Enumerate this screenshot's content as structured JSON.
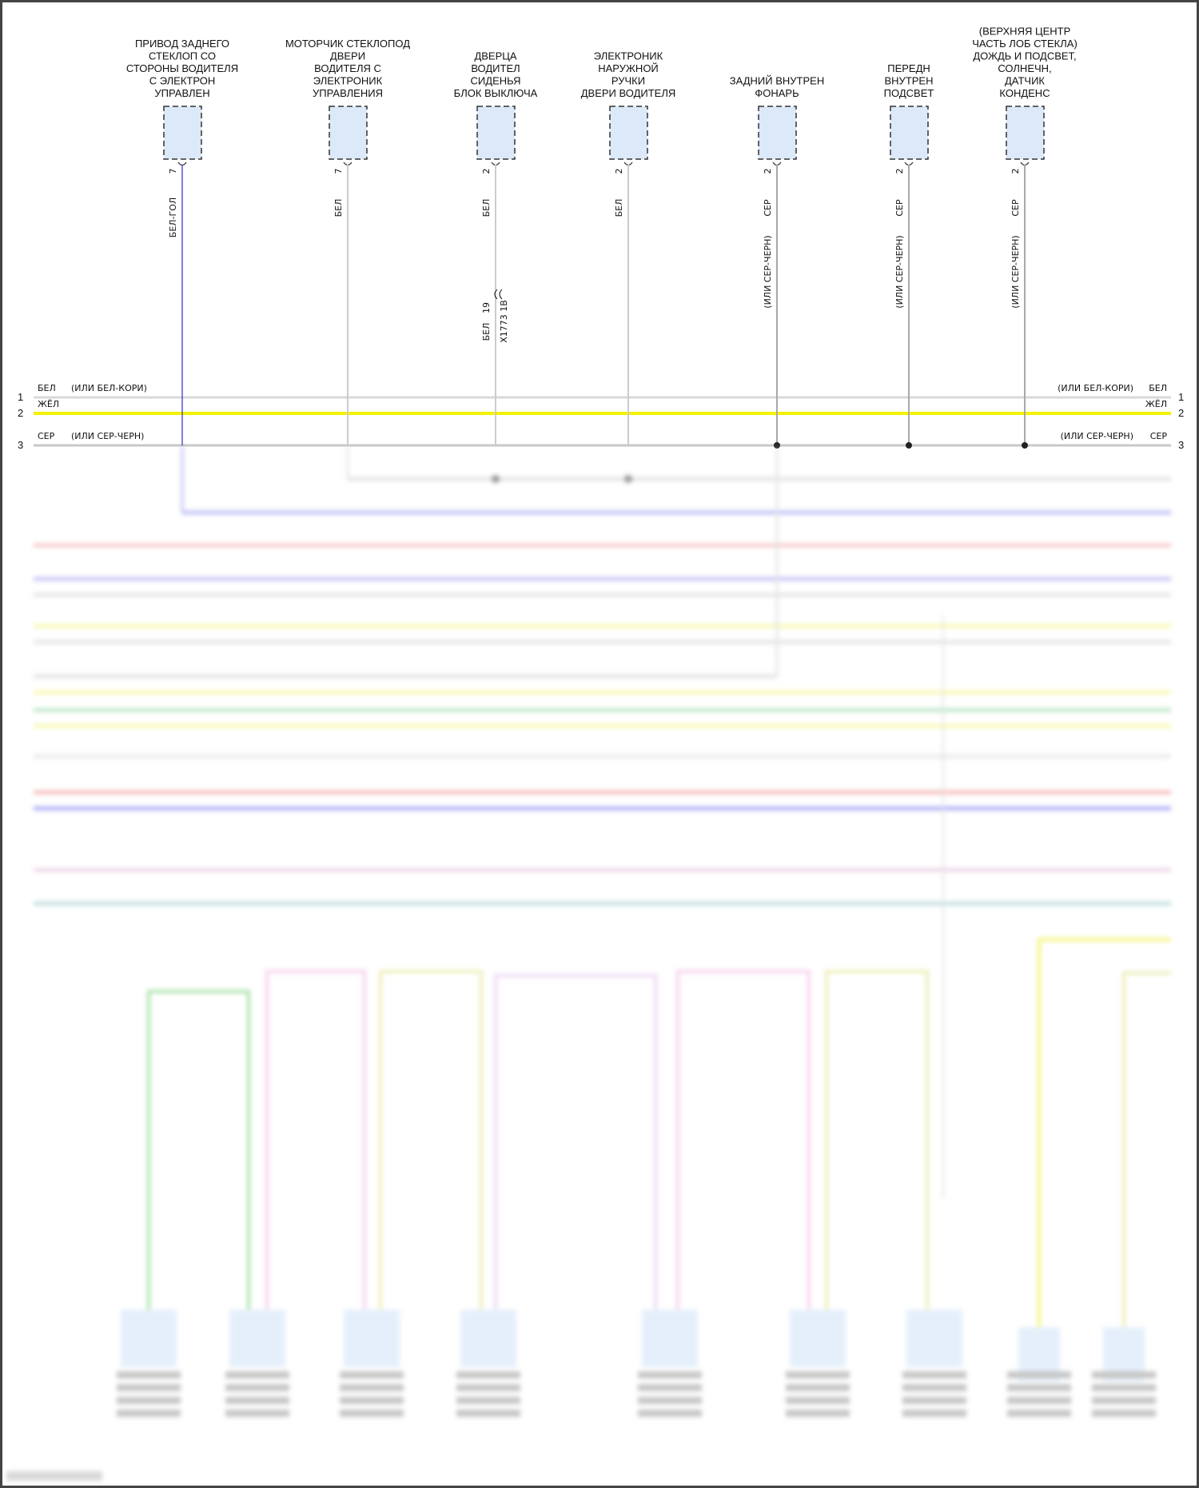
{
  "components": [
    {
      "label": [
        "ПРИВОД ЗАДНЕГО",
        "СТЕКЛОП СО",
        "СТОРОНЫ ВОДИТЕЛЯ",
        "С ЭЛЕКТРОН",
        "УПРАВЛЕН"
      ],
      "pin": "7",
      "wire": "БЕЛ-ГОЛ",
      "wire_alt": "",
      "color": "#3a3ad0"
    },
    {
      "label": [
        "МОТОРЧИК СТЕКЛОПОД",
        "ДВЕРИ",
        "ВОДИТЕЛЯ С",
        "ЭЛЕКТРОНИК",
        "УПРАВЛЕНИЯ"
      ],
      "pin": "7",
      "wire": "БЕЛ",
      "wire_alt": "",
      "color": "#cccccc"
    },
    {
      "label": [
        "ДВЕРЦА",
        "ВОДИТЕЛ",
        "СИДЕНЬЯ",
        "БЛОК ВЫКЛЮЧА"
      ],
      "pin": "2",
      "wire": "БЕЛ",
      "wire_alt": "",
      "color": "#cccccc"
    },
    {
      "label": [
        "ЭЛЕКТРОНИК",
        "НАРУЖНОЙ",
        "РУЧКИ",
        "ДВЕРИ ВОДИТЕЛЯ"
      ],
      "pin": "2",
      "wire": "БЕЛ",
      "wire_alt": "",
      "color": "#cccccc"
    },
    {
      "label": [
        "ЗАДНИЙ ВНУТРЕН",
        "ФОНАРЬ"
      ],
      "pin": "2",
      "wire": "СЕР",
      "wire_alt": "(ИЛИ СЕР-ЧЕРН)",
      "color": "#a8a8a8"
    },
    {
      "label": [
        "ПЕРЕДН",
        "ВНУТРЕН",
        "ПОДСВЕТ"
      ],
      "pin": "2",
      "wire": "СЕР",
      "wire_alt": "(ИЛИ СЕР-ЧЕРН)",
      "color": "#a8a8a8"
    },
    {
      "label": [
        "(ВЕРХНЯЯ ЦЕНТР",
        "ЧАСТЬ ЛОБ СТЕКЛА)",
        "ДОЖДЬ И ПОДСВЕТ,",
        "СОЛНЕЧН,",
        "ДАТЧИК",
        "КОНДЕНС"
      ],
      "pin": "2",
      "wire": "СЕР",
      "wire_alt": "(ИЛИ СЕР-ЧЕРН)",
      "color": "#a8a8a8"
    }
  ],
  "inline_connector": {
    "pin": "19",
    "wire": "БЕЛ",
    "name": "X1773 1B"
  },
  "bus": [
    {
      "num": "1",
      "left": [
        "БЕЛ",
        "(ИЛИ БЕЛ-КОРИ)"
      ],
      "right": [
        "(ИЛИ БЕЛ-КОРИ)",
        "БЕЛ"
      ],
      "color": "#d9d9d9"
    },
    {
      "num": "2",
      "left": [
        "ЖЁЛ",
        ""
      ],
      "right": [
        "",
        "ЖЁЛ"
      ],
      "color": "#f2f200"
    },
    {
      "num": "3",
      "left": [
        "СЕР",
        "(ИЛИ СЕР-ЧЕРН)"
      ],
      "right": [
        "(ИЛИ СЕР-ЧЕРН)",
        "СЕР"
      ],
      "color": "#c8c8c8"
    }
  ],
  "colors": {
    "box_fill": "#dbe9f8",
    "box_stroke": "#333333"
  }
}
